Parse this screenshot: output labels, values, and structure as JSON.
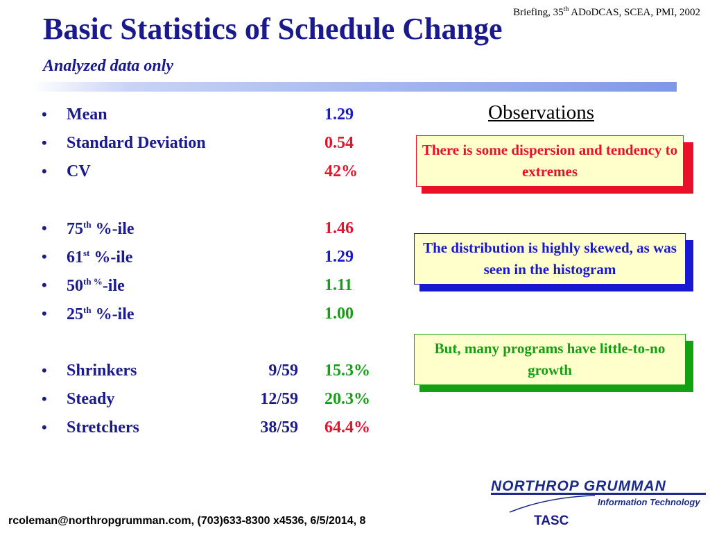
{
  "header": {
    "note_pre": "Briefing, 35",
    "note_sup": "th",
    "note_post": " ADoDCAS, SCEA, PMI, 2002",
    "title": "Basic Statistics of Schedule Change",
    "subtitle": "Analyzed data only"
  },
  "stats": {
    "mean": {
      "label": "Mean",
      "value": "1.29"
    },
    "sd": {
      "label": "Standard Deviation",
      "value": "0.54"
    },
    "cv": {
      "label": "CV",
      "value": "42%"
    },
    "p75": {
      "num": "75",
      "sup": "th",
      "suffix": " %-ile",
      "value": "1.46"
    },
    "p61": {
      "num": "61",
      "sup": "st",
      "suffix": " %-ile",
      "value": "1.29"
    },
    "p50": {
      "num": "50",
      "sup": "th %",
      "suffix": "-ile",
      "value": "1.11"
    },
    "p25": {
      "num": "25",
      "sup": "th",
      "suffix": " %-ile",
      "value": "1.00"
    },
    "shrinkers": {
      "label": "Shrinkers",
      "ratio": "9/59",
      "value": "15.3%"
    },
    "steady": {
      "label": "Steady",
      "ratio": "12/59",
      "value": "20.3%"
    },
    "stretchers": {
      "label": "Stretchers",
      "ratio": "38/59",
      "value": "64.4%"
    }
  },
  "bullet": "•",
  "observations": {
    "title": "Observations",
    "items": [
      {
        "text": "There is some dispersion and tendency to extremes",
        "color": "#e8102a"
      },
      {
        "text": "The distribution is highly skewed, as was seen in the histogram",
        "color": "#1818d0"
      },
      {
        "text": "But, many programs have little-to-no growth",
        "color": "#13a013"
      }
    ]
  },
  "logo": {
    "company": "NORTHROP GRUMMAN",
    "division": "Information Technology",
    "unit": "TASC"
  },
  "footer": {
    "text": "rcoleman@northropgrumman.com, (703)633-8300 x4536, 6/5/2014, 8"
  },
  "colors": {
    "title": "#1a1a8c",
    "blue": "#1818d0",
    "red": "#e8102a",
    "green": "#13a013",
    "box_fill": "#ffffcc"
  }
}
